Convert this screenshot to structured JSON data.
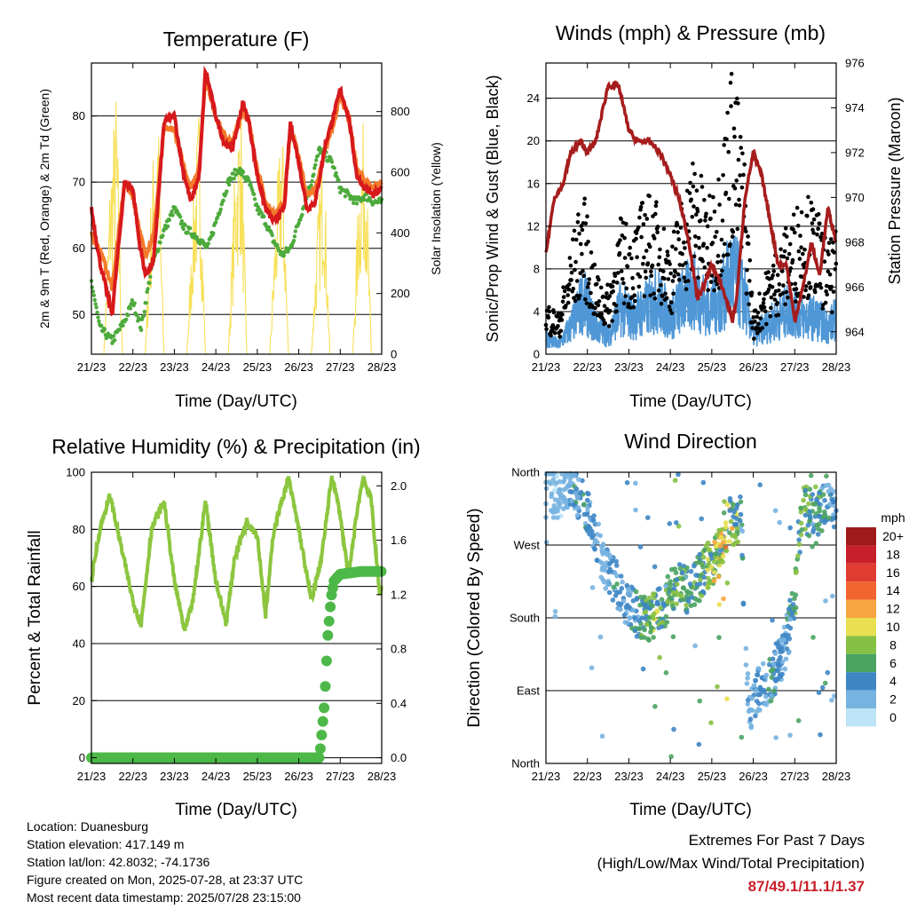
{
  "chart_data": [
    {
      "type": "line",
      "title": "Temperature (F)",
      "xlabel": "Time (Day/UTC)",
      "ylabel": "2m & 9m T (Red, Orange) & 2m Td (Green)",
      "y2label": "Solar Insolation (Yellow)",
      "x_ticks": [
        "21/23",
        "22/23",
        "23/23",
        "24/23",
        "25/23",
        "26/23",
        "27/23",
        "28/23"
      ],
      "ylim": [
        44,
        88
      ],
      "y_ticks": [
        50,
        60,
        70,
        80
      ],
      "y2lim": [
        0,
        960
      ],
      "y2_ticks": [
        0,
        200,
        400,
        600,
        800
      ],
      "colors": {
        "t2m": "#d7191c",
        "t9m": "#f57a2a",
        "td": "#4daa3c",
        "solar": "#f7e05a"
      },
      "series": [
        {
          "key": "t2m",
          "days": [
            0,
            0.2,
            0.5,
            0.8,
            1.0,
            1.15,
            1.3,
            1.5,
            1.75,
            2.0,
            2.2,
            2.4,
            2.6,
            2.75,
            3.0,
            3.2,
            3.4,
            3.65,
            3.8,
            4.0,
            4.2,
            4.4,
            4.65,
            4.8,
            5.0,
            5.2,
            5.4,
            5.65,
            5.8,
            6.0,
            6.2,
            6.4,
            6.6,
            6.8,
            7.0
          ],
          "values": [
            66,
            58,
            50,
            70,
            69,
            61,
            56,
            58,
            79,
            80,
            72,
            67,
            71,
            87,
            80,
            76,
            75,
            82,
            79,
            71,
            66,
            64,
            66,
            79,
            73,
            66,
            67,
            76,
            79,
            84,
            80,
            71,
            69,
            68,
            69
          ]
        },
        {
          "key": "t9m",
          "days": [
            0,
            0.2,
            0.5,
            0.8,
            1.0,
            1.15,
            1.3,
            1.5,
            1.75,
            2.0,
            2.2,
            2.4,
            2.6,
            2.75,
            3.0,
            3.2,
            3.4,
            3.65,
            3.8,
            4.0,
            4.2,
            4.4,
            4.65,
            4.8,
            5.0,
            5.2,
            5.4,
            5.65,
            5.8,
            6.0,
            6.2,
            6.4,
            6.6,
            6.8,
            7.0
          ],
          "values": [
            62,
            60,
            54,
            70,
            68,
            63,
            59,
            62,
            78,
            78,
            73,
            69,
            72,
            86,
            80,
            77,
            76,
            81,
            79,
            72,
            67,
            65,
            67,
            78,
            74,
            68,
            69,
            75,
            78,
            83,
            80,
            72,
            70,
            69,
            70
          ]
        },
        {
          "key": "td",
          "days": [
            0,
            0.2,
            0.5,
            0.8,
            1.0,
            1.2,
            1.45,
            1.7,
            2.0,
            2.25,
            2.5,
            2.8,
            3.0,
            3.3,
            3.55,
            3.8,
            4.0,
            4.2,
            4.4,
            4.6,
            4.8,
            5.0,
            5.3,
            5.5,
            5.8,
            6.0,
            6.2,
            6.4,
            6.6,
            6.8,
            7.0
          ],
          "values": [
            55,
            48,
            46,
            49,
            52,
            48,
            57,
            62,
            66,
            63,
            62,
            60,
            64,
            70,
            72,
            70,
            66,
            64,
            61,
            59,
            60,
            64,
            70,
            75,
            73,
            69,
            68,
            67,
            68,
            67,
            67
          ]
        },
        {
          "key": "solar",
          "days": [
            0,
            0.3,
            0.45,
            0.6,
            0.75,
            1.0,
            1.3,
            1.45,
            1.6,
            1.75,
            2.0,
            2.3,
            2.45,
            2.6,
            2.75,
            3.0,
            3.3,
            3.45,
            3.6,
            3.75,
            4.0,
            4.3,
            4.45,
            4.6,
            4.75,
            5.0,
            5.3,
            5.45,
            5.6,
            5.75,
            6.0,
            6.3,
            6.45,
            6.6,
            6.75,
            7.0
          ],
          "values": [
            0,
            0,
            600,
            900,
            0,
            0,
            0,
            600,
            880,
            0,
            0,
            0,
            500,
            850,
            0,
            0,
            0,
            600,
            900,
            0,
            0,
            0,
            500,
            820,
            0,
            0,
            0,
            450,
            750,
            0,
            0,
            0,
            600,
            840,
            0,
            0
          ]
        }
      ]
    },
    {
      "type": "scatter",
      "title": "Winds (mph) & Pressure (mb)",
      "xlabel": "Time (Day/UTC)",
      "ylabel": "Sonic/Prop Wind & Gust (Blue, Black)",
      "y2label": "Station Pressure (Maroon)",
      "x_ticks": [
        "21/23",
        "22/23",
        "23/23",
        "24/23",
        "25/23",
        "26/23",
        "27/23",
        "28/23"
      ],
      "ylim": [
        0,
        27.3
      ],
      "y_ticks": [
        0,
        4,
        8,
        12,
        16,
        20,
        24
      ],
      "y2lim": [
        963.0,
        976.0
      ],
      "y2_ticks": [
        964,
        966,
        968,
        970,
        972,
        974,
        976
      ],
      "colors": {
        "wind": "#4f97d6",
        "gust": "#000000",
        "pressure": "#a61c1c"
      },
      "series": [
        {
          "key": "wind",
          "days": [
            0,
            0.3,
            0.6,
            0.9,
            1.2,
            1.5,
            1.8,
            2.1,
            2.4,
            2.7,
            3.0,
            3.3,
            3.6,
            3.9,
            4.2,
            4.5,
            4.8,
            5.0,
            5.3,
            5.6,
            5.9,
            6.2,
            6.5,
            6.8,
            7.0
          ],
          "values": [
            2,
            1,
            3,
            6,
            3,
            2,
            5,
            4,
            5,
            6,
            4,
            6,
            7,
            5,
            6,
            9,
            6,
            2,
            3,
            4,
            5,
            4,
            4,
            3,
            4
          ]
        },
        {
          "key": "gust",
          "days": [
            0,
            0.3,
            0.6,
            0.9,
            1.2,
            1.5,
            1.8,
            2.1,
            2.4,
            2.7,
            3.0,
            3.3,
            3.6,
            3.9,
            4.2,
            4.5,
            4.8,
            5.0,
            5.3,
            5.6,
            5.9,
            6.2,
            6.5,
            6.8,
            7.0
          ],
          "values": [
            4,
            3,
            8,
            12,
            6,
            5,
            10,
            9,
            12,
            11,
            8,
            12,
            15,
            11,
            14,
            22,
            14,
            3,
            6,
            8,
            10,
            12,
            11,
            8,
            9
          ]
        },
        {
          "key": "pressure",
          "days": [
            0,
            0.2,
            0.4,
            0.6,
            0.85,
            1.0,
            1.2,
            1.5,
            1.75,
            2.0,
            2.2,
            2.5,
            2.75,
            3.0,
            3.2,
            3.45,
            3.65,
            3.8,
            4.0,
            4.25,
            4.5,
            4.6,
            4.8,
            5.0,
            5.2,
            5.4,
            5.6,
            5.8,
            6.0,
            6.2,
            6.4,
            6.6,
            6.8,
            7.0
          ],
          "values": [
            967.5,
            970,
            970.5,
            972,
            972.5,
            972,
            972.5,
            975,
            975,
            973,
            972.5,
            972.5,
            972,
            971,
            970,
            968,
            965.5,
            966,
            967,
            966,
            964.5,
            965.5,
            970,
            972,
            971,
            969,
            967,
            967,
            964.5,
            966,
            968,
            966.5,
            969.5,
            968
          ]
        }
      ]
    },
    {
      "type": "line",
      "title": "Relative Humidity (%) & Precipitation (in)",
      "xlabel": "Time (Day/UTC)",
      "ylabel": "Percent & Total Rainfall",
      "x_ticks": [
        "21/23",
        "22/23",
        "23/23",
        "24/23",
        "25/23",
        "26/23",
        "27/23",
        "28/23"
      ],
      "ylim": [
        -2,
        100
      ],
      "y_ticks": [
        0,
        20,
        40,
        60,
        80,
        100
      ],
      "y2lim": [
        -0.042,
        2.1
      ],
      "y2_ticks": [
        "0.0",
        "0.4",
        "0.8",
        "1.2",
        "1.6",
        "2.0"
      ],
      "colors": {
        "rh": "#8cc63f",
        "precip": "#4db848"
      },
      "series": [
        {
          "key": "rh",
          "days": [
            0,
            0.2,
            0.45,
            0.7,
            1.0,
            1.2,
            1.45,
            1.75,
            2.0,
            2.25,
            2.45,
            2.75,
            3.0,
            3.25,
            3.45,
            3.75,
            4.0,
            4.2,
            4.4,
            4.75,
            5.0,
            5.3,
            5.55,
            5.8,
            6.0,
            6.2,
            6.4,
            6.55,
            6.75,
            6.95,
            7.0
          ],
          "values": [
            62,
            80,
            92,
            75,
            55,
            47,
            80,
            90,
            62,
            44,
            55,
            90,
            62,
            47,
            70,
            83,
            78,
            50,
            80,
            98,
            80,
            55,
            70,
            99,
            85,
            63,
            86,
            98,
            90,
            57,
            60
          ]
        },
        {
          "key": "precip",
          "days": [
            0,
            1,
            2,
            3,
            4,
            5,
            5.5,
            5.62,
            5.7,
            5.78,
            5.85,
            6.0,
            6.5,
            7.0
          ],
          "values": [
            0,
            0,
            0,
            0,
            0,
            0,
            0,
            0.4,
            0.9,
            1.18,
            1.3,
            1.35,
            1.37,
            1.37
          ]
        }
      ]
    },
    {
      "type": "scatter",
      "title": "Wind Direction",
      "xlabel": "Time (Day/UTC)",
      "ylabel": "Direction (Colored By Speed)",
      "x_ticks": [
        "21/23",
        "22/23",
        "23/23",
        "24/23",
        "25/23",
        "26/23",
        "27/23",
        "28/23"
      ],
      "y_ticks": [
        "North",
        "East",
        "South",
        "West",
        "North"
      ],
      "ylim": [
        0,
        360
      ],
      "legend": {
        "title": "mph",
        "labels": [
          "20+",
          "18",
          "16",
          "14",
          "12",
          "10",
          "8",
          "6",
          "4",
          "2",
          "0"
        ],
        "colors": [
          "#9e1b1b",
          "#c8202a",
          "#e03c31",
          "#f26430",
          "#f7a540",
          "#e8e050",
          "#86c043",
          "#4aa361",
          "#3e86c4",
          "#77b3e0",
          "#bde3f7"
        ]
      },
      "direction_trend_days": [
        0,
        0.3,
        0.6,
        0.9,
        1.1,
        1.4,
        1.7,
        2.0,
        2.3,
        2.6,
        2.9,
        3.2,
        3.5,
        3.8,
        4.1,
        4.4,
        4.7,
        4.9,
        5.1,
        5.4,
        5.7,
        6.0,
        6.2,
        6.5,
        6.8,
        7.0
      ],
      "direction_trend_values": [
        350,
        330,
        345,
        320,
        300,
        240,
        220,
        190,
        185,
        180,
        200,
        230,
        210,
        240,
        250,
        300,
        300,
        60,
        90,
        100,
        130,
        200,
        320,
        300,
        330,
        310
      ],
      "speed_trend_values": [
        2,
        1,
        3,
        5,
        3,
        2,
        4,
        3,
        5,
        7,
        5,
        6,
        5,
        6,
        8,
        10,
        5,
        2,
        3,
        4,
        3,
        5,
        6,
        5,
        4,
        3
      ]
    }
  ],
  "info": {
    "location": "Location: Duanesburg",
    "elevation": "Station elevation: 417.149 m",
    "latlon": "Station lat/lon: 42.8032; -74.1736",
    "created": "Figure created on Mon, 2025-07-28, at 23:37 UTC",
    "recent": "Most recent data timestamp: 2025/07/28 23:15:00"
  },
  "extremes": {
    "title": "Extremes For Past 7 Days",
    "subtitle": "(High/Low/Max Wind/Total Precipitation)",
    "value": "87/49.1/11.1/1.37"
  }
}
